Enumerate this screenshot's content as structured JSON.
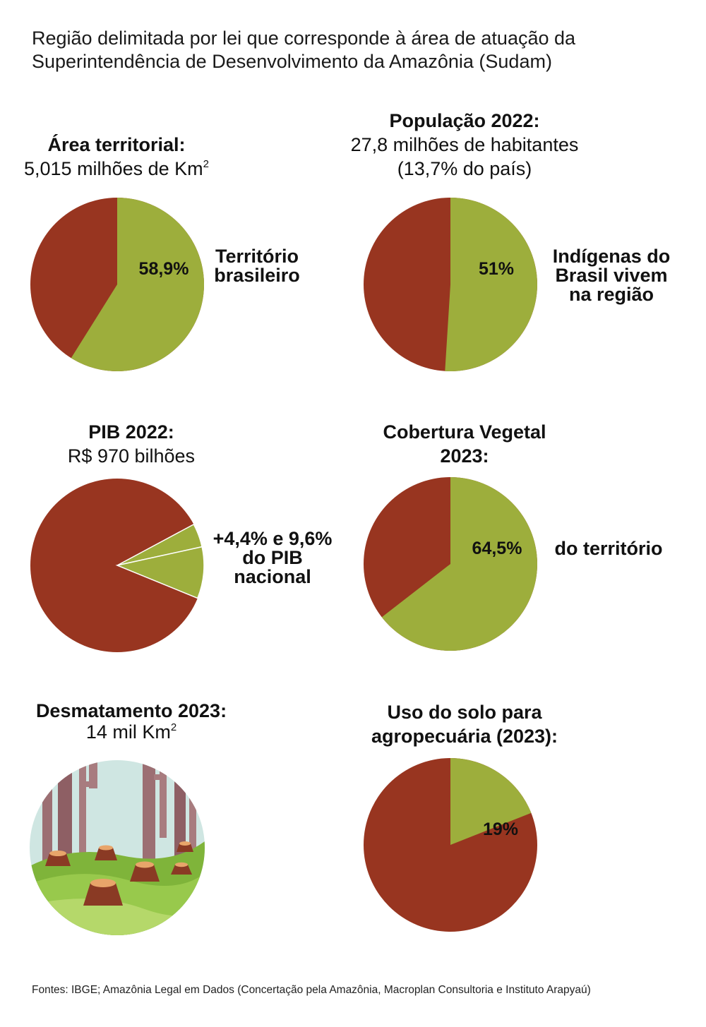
{
  "intro": "Região delimitada por lei que corresponde à área de atuação da Superintendência de Desenvolvimento da Amazônia (Sudam)",
  "colors": {
    "region": "#983520",
    "highlight": "#9dae3c",
    "text": "#111111"
  },
  "panels": {
    "area": {
      "title": "Área territorial:",
      "subtitle": "5,015 milhões de Km",
      "superscript": "2",
      "side_lines": [
        "Território",
        "brasileiro"
      ]
    },
    "pop": {
      "title": "População 2022:",
      "subtitle_1": "27,8 milhões de habitantes",
      "subtitle_2": "(13,7% do país)",
      "side_lines": [
        "Indígenas do",
        "Brasil vivem",
        "na região"
      ]
    },
    "pib": {
      "title": "PIB 2022:",
      "subtitle": "R$ 970 bilhões",
      "side_lines": [
        "+4,4% e 9,6%",
        "do PIB",
        "nacional"
      ]
    },
    "veg": {
      "title_1": "Cobertura Vegetal",
      "title_2": "2023:",
      "side_lines": [
        "do território"
      ]
    },
    "desm": {
      "title": "Desmatamento 2023:",
      "subtitle": "14 mil Km",
      "superscript": "2",
      "illustration_icon": "tree-stumps-illustration"
    },
    "solo": {
      "title_1": "Uso do solo para",
      "title_2": "agropecuária (2023):"
    }
  },
  "chart_data": [
    {
      "id": "area",
      "type": "pie",
      "title": "Área territorial:",
      "slices": [
        {
          "label": "58,9%",
          "value": 58.9
        }
      ]
    },
    {
      "id": "pop",
      "type": "pie",
      "title": "População 2022:",
      "slices": [
        {
          "label": "51%",
          "value": 51
        }
      ]
    },
    {
      "id": "pib",
      "type": "pie",
      "title": "PIB 2022:",
      "slices": [
        {
          "label": "",
          "value": 4.4
        },
        {
          "label": "",
          "value": 9.6
        }
      ]
    },
    {
      "id": "veg",
      "type": "pie",
      "title": "Cobertura Vegetal 2023:",
      "slices": [
        {
          "label": "64,5%",
          "value": 64.5
        }
      ]
    },
    {
      "id": "solo",
      "type": "pie",
      "title": "Uso do solo para agropecuária (2023):",
      "slices": [
        {
          "label": "19%",
          "value": 19
        }
      ]
    }
  ],
  "footer": "Fontes: IBGE; Amazônia Legal em Dados (Concertação pela Amazônia, Macroplan Consultoria e  Instituto Arapyaú)"
}
